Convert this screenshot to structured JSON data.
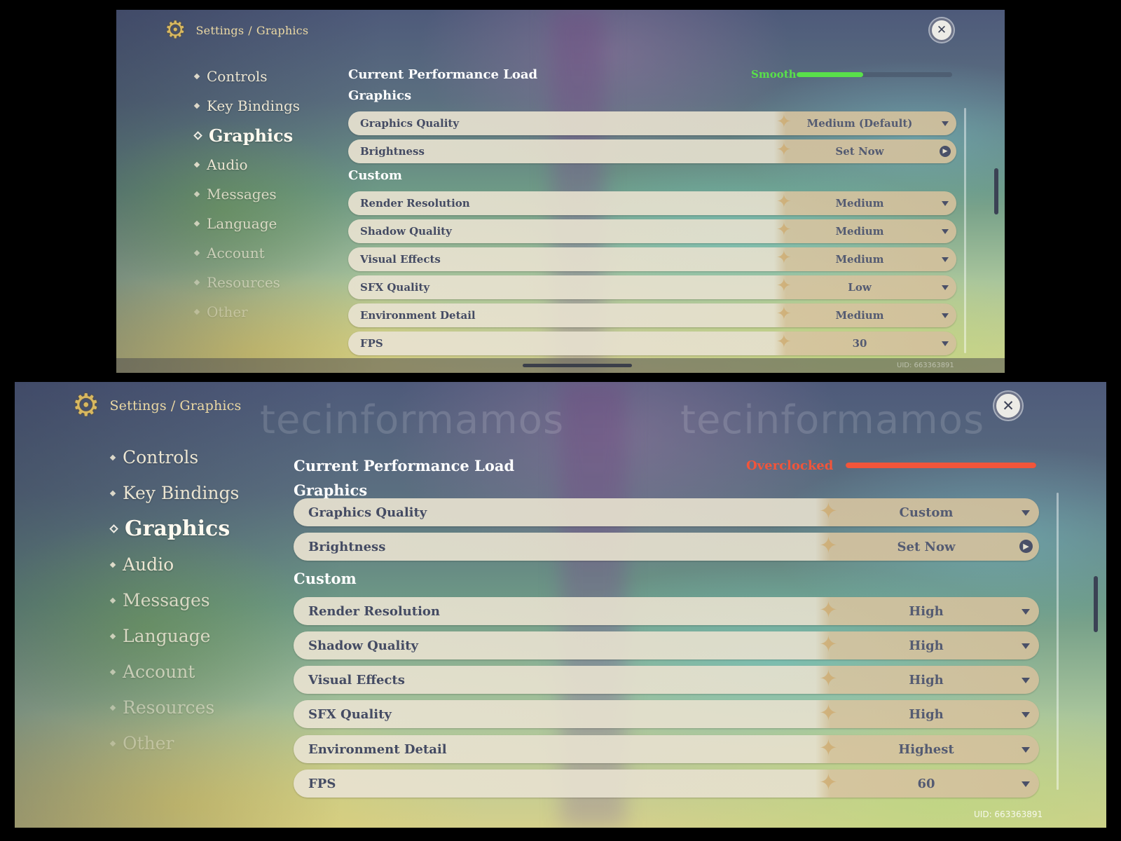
{
  "panels": {
    "top": {
      "breadcrumb": {
        "root": "Settings",
        "separator": "/",
        "current": "Graphics"
      },
      "close_icon": "close-icon",
      "nav": [
        "Controls",
        "Key Bindings",
        "Graphics",
        "Audio",
        "Messages",
        "Language",
        "Account",
        "Resources",
        "Other"
      ],
      "active_nav": "Graphics",
      "performance": {
        "title": "Current Performance Load",
        "status": "Smooth",
        "status_color": "#59e04a",
        "level_percent": 43
      },
      "graphics_section": "Graphics",
      "graphics_rows": [
        {
          "label": "Graphics Quality",
          "value": "Medium (Default)",
          "control": "dropdown"
        },
        {
          "label": "Brightness",
          "value": "Set Now",
          "control": "arrow"
        }
      ],
      "custom_section": "Custom",
      "custom_rows": [
        {
          "label": "Render Resolution",
          "value": "Medium"
        },
        {
          "label": "Shadow Quality",
          "value": "Medium"
        },
        {
          "label": "Visual Effects",
          "value": "Medium"
        },
        {
          "label": "SFX Quality",
          "value": "Low"
        },
        {
          "label": "Environment Detail",
          "value": "Medium"
        },
        {
          "label": "FPS",
          "value": "30"
        }
      ],
      "uid": "UID: 663363891"
    },
    "bottom": {
      "breadcrumb": {
        "root": "Settings",
        "separator": "/",
        "current": "Graphics"
      },
      "close_icon": "close-icon",
      "nav": [
        "Controls",
        "Key Bindings",
        "Graphics",
        "Audio",
        "Messages",
        "Language",
        "Account",
        "Resources",
        "Other"
      ],
      "active_nav": "Graphics",
      "performance": {
        "title": "Current Performance Load",
        "status": "Overclocked",
        "status_color": "#f2553a",
        "level_percent": 100
      },
      "graphics_section": "Graphics",
      "graphics_rows": [
        {
          "label": "Graphics Quality",
          "value": "Custom",
          "control": "dropdown"
        },
        {
          "label": "Brightness",
          "value": "Set Now",
          "control": "arrow"
        }
      ],
      "custom_section": "Custom",
      "custom_rows": [
        {
          "label": "Render Resolution",
          "value": "High"
        },
        {
          "label": "Shadow Quality",
          "value": "High"
        },
        {
          "label": "Visual Effects",
          "value": "High"
        },
        {
          "label": "SFX Quality",
          "value": "High"
        },
        {
          "label": "Environment Detail",
          "value": "Highest"
        },
        {
          "label": "FPS",
          "value": "60"
        }
      ],
      "uid": "UID: 663363891",
      "watermark": "tecinformamos"
    }
  },
  "accent_colors": {
    "breadcrumb": "#ecd9a4",
    "gear": "#d8b860",
    "row_text": "#444b63"
  }
}
